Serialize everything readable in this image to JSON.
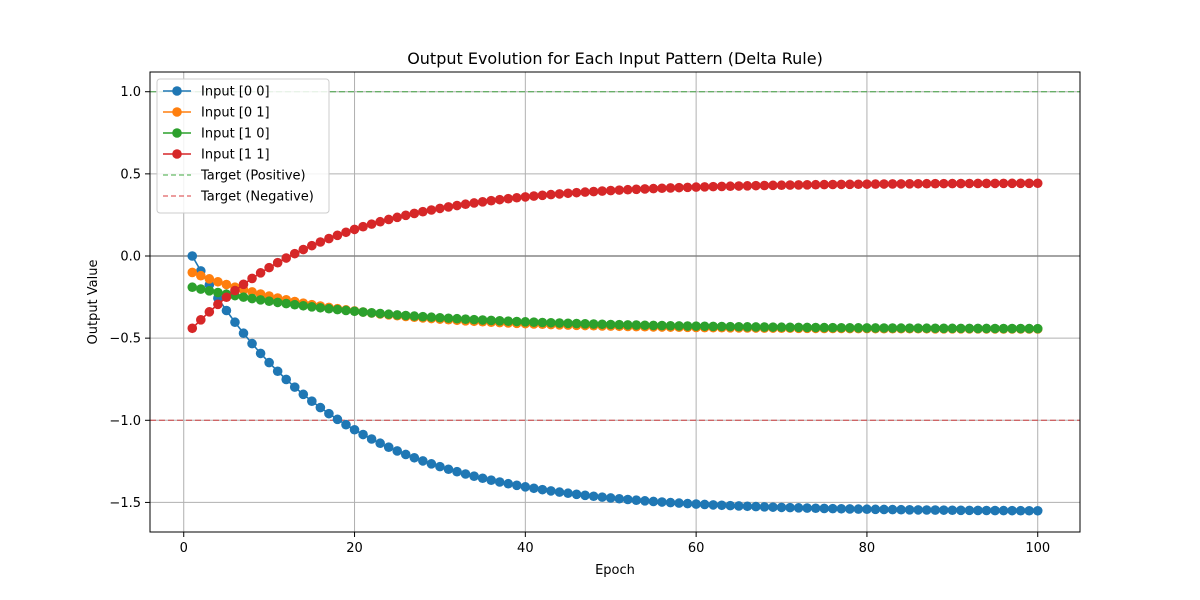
{
  "chart_data": {
    "type": "line",
    "title": "Output Evolution for Each Input Pattern (Delta Rule)",
    "xlabel": "Epoch",
    "ylabel": "Output Value",
    "xlim": [
      -3.95,
      104.95
    ],
    "ylim": [
      -1.68,
      1.12
    ],
    "x_ticks": [
      0,
      20,
      40,
      60,
      80,
      100
    ],
    "y_ticks": [
      -1.5,
      -1.0,
      -0.5,
      0.0,
      0.5,
      1.0
    ],
    "x_tick_labels": [
      "0",
      "20",
      "40",
      "60",
      "80",
      "100"
    ],
    "y_tick_labels": [
      "−1.5",
      "−1.0",
      "−0.5",
      "0.0",
      "0.5",
      "1.0"
    ],
    "grid": true,
    "legend_position": "top-left",
    "epochs": {
      "start": 1,
      "end": 100
    },
    "series": [
      {
        "name": "Input [0 0]",
        "color": "#1f77b4",
        "marker": "circle",
        "model": {
          "type": "exp_approach",
          "start": 0.0,
          "final": -1.555,
          "rate": 0.06
        }
      },
      {
        "name": "Input [0 1]",
        "color": "#ff7f0e",
        "marker": "circle",
        "model": {
          "type": "exp_approach",
          "start": -0.1,
          "final": -0.445,
          "rate": 0.06
        }
      },
      {
        "name": "Input [1 0]",
        "color": "#2ca02c",
        "marker": "circle",
        "model": {
          "type": "exp_approach",
          "start": -0.19,
          "final": -0.445,
          "rate": 0.045
        }
      },
      {
        "name": "Input [1 1]",
        "color": "#d62728",
        "marker": "circle",
        "model": {
          "type": "exp_approach",
          "start": -0.44,
          "final": 0.445,
          "rate": 0.06
        }
      }
    ],
    "reference_lines": [
      {
        "name": "Target (Positive)",
        "y": 1.0,
        "color": "#2ca02c",
        "style": "dashed"
      },
      {
        "name": "Target (Negative)",
        "y": -1.0,
        "color": "#d62728",
        "style": "dashed"
      },
      {
        "name": "",
        "y": 0.0,
        "color": "#808080",
        "style": "solid"
      }
    ]
  }
}
